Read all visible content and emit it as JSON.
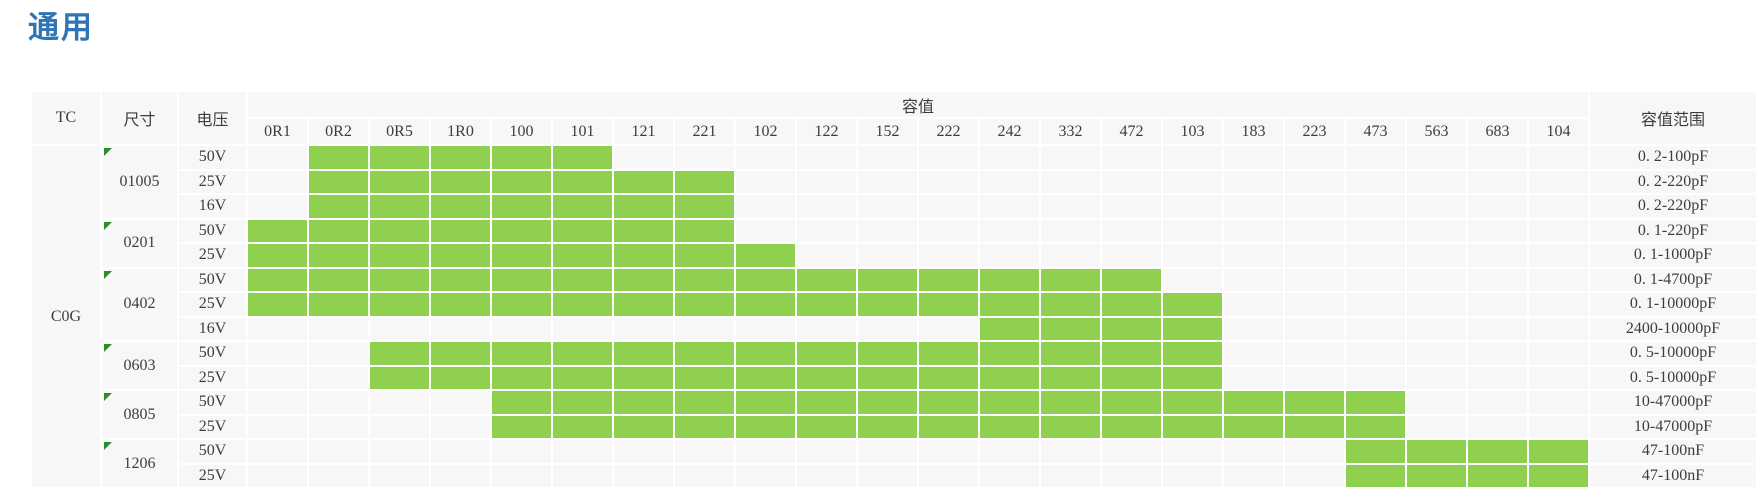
{
  "page_title": "通用",
  "colors": {
    "title_blue": "#2E75B6",
    "cell_green": "#8FD14F",
    "cell_background": "#F7F7F7",
    "marker_green": "#2E8B2E",
    "gridline": "#FFFFFF",
    "text": "#3D3D3D"
  },
  "table": {
    "headers": {
      "tc": "TC",
      "size": "尺寸",
      "voltage": "电压",
      "capacitance": "容值",
      "range": "容值范围"
    },
    "value_columns": [
      "0R1",
      "0R2",
      "0R5",
      "1R0",
      "100",
      "101",
      "121",
      "221",
      "102",
      "122",
      "152",
      "222",
      "242",
      "332",
      "472",
      "103",
      "183",
      "223",
      "473",
      "563",
      "683",
      "104"
    ],
    "tc_value": "C0G",
    "groups": [
      {
        "size": "01005",
        "rows": [
          {
            "voltage": "50V",
            "start": 2,
            "end": 6,
            "range": "0. 2-100pF"
          },
          {
            "voltage": "25V",
            "start": 2,
            "end": 8,
            "range": "0. 2-220pF"
          },
          {
            "voltage": "16V",
            "start": 2,
            "end": 8,
            "range": "0. 2-220pF"
          }
        ]
      },
      {
        "size": "0201",
        "rows": [
          {
            "voltage": "50V",
            "start": 1,
            "end": 8,
            "range": "0. 1-220pF"
          },
          {
            "voltage": "25V",
            "start": 1,
            "end": 9,
            "range": "0. 1-1000pF"
          }
        ]
      },
      {
        "size": "0402",
        "rows": [
          {
            "voltage": "50V",
            "start": 1,
            "end": 15,
            "range": "0. 1-4700pF"
          },
          {
            "voltage": "25V",
            "start": 1,
            "end": 16,
            "range": "0. 1-10000pF"
          },
          {
            "voltage": "16V",
            "start": 13,
            "end": 16,
            "range": "2400-10000pF"
          }
        ]
      },
      {
        "size": "0603",
        "rows": [
          {
            "voltage": "50V",
            "start": 3,
            "end": 16,
            "range": "0. 5-10000pF"
          },
          {
            "voltage": "25V",
            "start": 3,
            "end": 16,
            "range": "0. 5-10000pF"
          }
        ]
      },
      {
        "size": "0805",
        "rows": [
          {
            "voltage": "50V",
            "start": 5,
            "end": 19,
            "range": "10-47000pF"
          },
          {
            "voltage": "25V",
            "start": 5,
            "end": 19,
            "range": "10-47000pF"
          }
        ]
      },
      {
        "size": "1206",
        "rows": [
          {
            "voltage": "50V",
            "start": 19,
            "end": 22,
            "range": "47-100nF"
          },
          {
            "voltage": "25V",
            "start": 19,
            "end": 22,
            "range": "47-100nF"
          }
        ]
      }
    ]
  }
}
